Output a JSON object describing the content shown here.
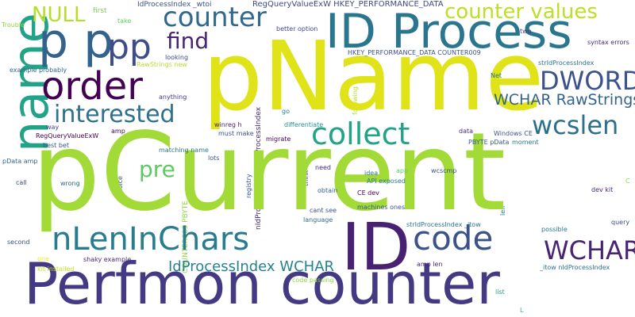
{
  "words": [
    {
      "text": "pCurrent",
      "color": "#a2da37"
    },
    {
      "text": "pName",
      "color": "#dfe318"
    },
    {
      "text": "Perfmon counter",
      "color": "#443a83"
    },
    {
      "text": "ID Process",
      "color": "#2a768e"
    },
    {
      "text": "ID",
      "color": "#482173"
    },
    {
      "text": "p p",
      "color": "#33638d"
    },
    {
      "text": "pp",
      "color": "#3e4c8a"
    },
    {
      "text": "counter",
      "color": "#31688e"
    },
    {
      "text": "order",
      "color": "#440154"
    },
    {
      "text": "name",
      "color": "#20a386"
    },
    {
      "text": "interested",
      "color": "#2c728e"
    },
    {
      "text": "collect",
      "color": "#20a386"
    },
    {
      "text": "nLenInChars",
      "color": "#287c8e"
    },
    {
      "text": "code",
      "color": "#3b528b"
    },
    {
      "text": "find",
      "color": "#482475"
    },
    {
      "text": "DWORD",
      "color": "#3b528b"
    },
    {
      "text": "wcslen",
      "color": "#2d708e"
    },
    {
      "text": "WCHAR",
      "color": "#482475"
    },
    {
      "text": "NULL",
      "color": "#b5de2b"
    },
    {
      "text": "counter values",
      "color": "#bddf26"
    },
    {
      "text": "pre",
      "color": "#5ec962"
    },
    {
      "text": "WCHAR RawStrings",
      "color": "#33638d"
    },
    {
      "text": "IdProcessIndex WCHAR",
      "color": "#26828e"
    },
    {
      "text": "RegQueryValueExW HKEY_PERFORMANCE_DATA",
      "color": "#3e4989"
    },
    {
      "text": "IdProcessIndex _wtoi",
      "color": "#3b528b"
    },
    {
      "text": "first",
      "color": "#7ad151"
    },
    {
      "text": "take",
      "color": "#5ec962"
    },
    {
      "text": "Trouble",
      "color": "#8fd744"
    },
    {
      "text": "RawStrings new",
      "color": "#b5de2b"
    },
    {
      "text": "looking",
      "color": "#3e4989"
    },
    {
      "text": "example probably",
      "color": "#31688e"
    },
    {
      "text": "anything",
      "color": "#443983"
    },
    {
      "text": "amp",
      "color": "#440154"
    },
    {
      "text": "way",
      "color": "#3e4989"
    },
    {
      "text": "RegQueryValueExW",
      "color": "#440154"
    },
    {
      "text": "best bet",
      "color": "#3b528b"
    },
    {
      "text": "winreg h",
      "color": "#481f70"
    },
    {
      "text": "must make",
      "color": "#3b528b"
    },
    {
      "text": "migrate",
      "color": "#440154"
    },
    {
      "text": "matching name",
      "color": "#2a788e"
    },
    {
      "text": "lots",
      "color": "#3b528b"
    },
    {
      "text": "pData amp",
      "color": "#31688e"
    },
    {
      "text": "call",
      "color": "#3e4989"
    },
    {
      "text": "wrong",
      "color": "#31688e"
    },
    {
      "text": "choice",
      "color": "#3b528b"
    },
    {
      "text": "second",
      "color": "#3b528b"
    },
    {
      "text": "one",
      "color": "#fde725"
    },
    {
      "text": "kit installed",
      "color": "#c8e020"
    },
    {
      "text": "shaky example",
      "color": "#482878"
    },
    {
      "text": "better option",
      "color": "#3e4989"
    },
    {
      "text": "two",
      "color": "#443983"
    },
    {
      "text": "HKEY_PERFORMANCE_DATA COUNTER009",
      "color": "#3b528b"
    },
    {
      "text": "strIdProcessIndex",
      "color": "#2c728e"
    },
    {
      "text": "syntax errors",
      "color": "#482878"
    },
    {
      "text": "Net",
      "color": "#2c728e"
    },
    {
      "text": "Windows CE",
      "color": "#38588c"
    },
    {
      "text": "PBYTE pData",
      "color": "#38598c"
    },
    {
      "text": "moment",
      "color": "#2a788e"
    },
    {
      "text": "data",
      "color": "#472d7b"
    },
    {
      "text": "go",
      "color": "#26828e"
    },
    {
      "text": "differentiate",
      "color": "#21918c"
    },
    {
      "text": "need",
      "color": "#482878"
    },
    {
      "text": "idea",
      "color": "#2d708e"
    },
    {
      "text": "app",
      "color": "#5ec962"
    },
    {
      "text": "wcscmp",
      "color": "#3b528b"
    },
    {
      "text": "API exposed",
      "color": "#2a788e"
    },
    {
      "text": "obtain",
      "color": "#31688e"
    },
    {
      "text": "CE dev",
      "color": "#440154"
    },
    {
      "text": "cant see",
      "color": "#3b528b"
    },
    {
      "text": "machines ones",
      "color": "#3b528b"
    },
    {
      "text": "language",
      "color": "#31688e"
    },
    {
      "text": "strIdProcessIndex _itow",
      "color": "#2c728e"
    },
    {
      "text": "possible",
      "color": "#2a788e"
    },
    {
      "text": "dev kit",
      "color": "#482878"
    },
    {
      "text": "query",
      "color": "#3e4989"
    },
    {
      "text": "amp len",
      "color": "#482878"
    },
    {
      "text": "_itow nIdProcessIndex",
      "color": "#2c728e"
    },
    {
      "text": "code passing",
      "color": "#8fd744"
    },
    {
      "text": "list",
      "color": "#1fa187"
    },
    {
      "text": "C",
      "color": "#95d840"
    },
    {
      "text": "L",
      "color": "#35b779"
    },
    {
      "text": "nIdProcessIndex strIdProcessIndex",
      "color": "#482878"
    },
    {
      "text": "registry",
      "color": "#3b528b"
    },
    {
      "text": "think",
      "color": "#3e4989"
    },
    {
      "text": "following",
      "color": "#b5de2b"
    },
    {
      "text": "len",
      "color": "#2a788e"
    },
    {
      "text": "COUNTER009 PBYTE",
      "color": "#8fd744"
    }
  ]
}
